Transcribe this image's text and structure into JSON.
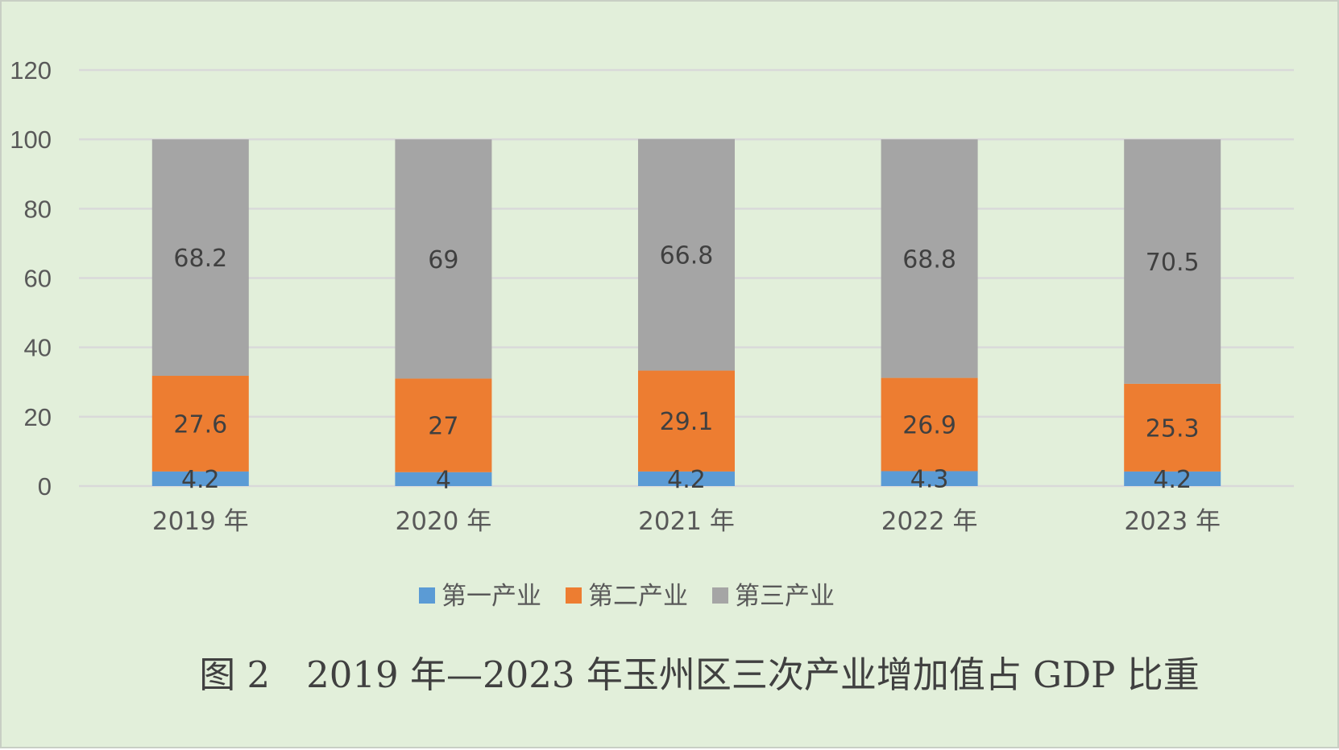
{
  "chart_data": {
    "type": "bar",
    "stacked": true,
    "title": "图 2　2019 年—2023 年玉州区三次产业增加值占 GDP 比重",
    "xlabel": "",
    "ylabel": "",
    "ylim": [
      0,
      120
    ],
    "yticks": [
      0,
      20,
      40,
      60,
      80,
      100,
      120
    ],
    "grid": true,
    "legend_position": "bottom",
    "categories": [
      "2019 年",
      "2020 年",
      "2021 年",
      "2022 年",
      "2023 年"
    ],
    "series": [
      {
        "name": "第一产业",
        "color": "#5b9bd5",
        "values": [
          4.2,
          4,
          4.2,
          4.3,
          4.2
        ]
      },
      {
        "name": "第二产业",
        "color": "#ed7d31",
        "values": [
          27.6,
          27,
          29.1,
          26.9,
          25.3
        ]
      },
      {
        "name": "第三产业",
        "color": "#a5a5a5",
        "values": [
          68.2,
          69,
          66.8,
          68.8,
          70.5
        ]
      }
    ],
    "gridline_color": "#d9d9d9",
    "background_color": "#e2efda"
  }
}
